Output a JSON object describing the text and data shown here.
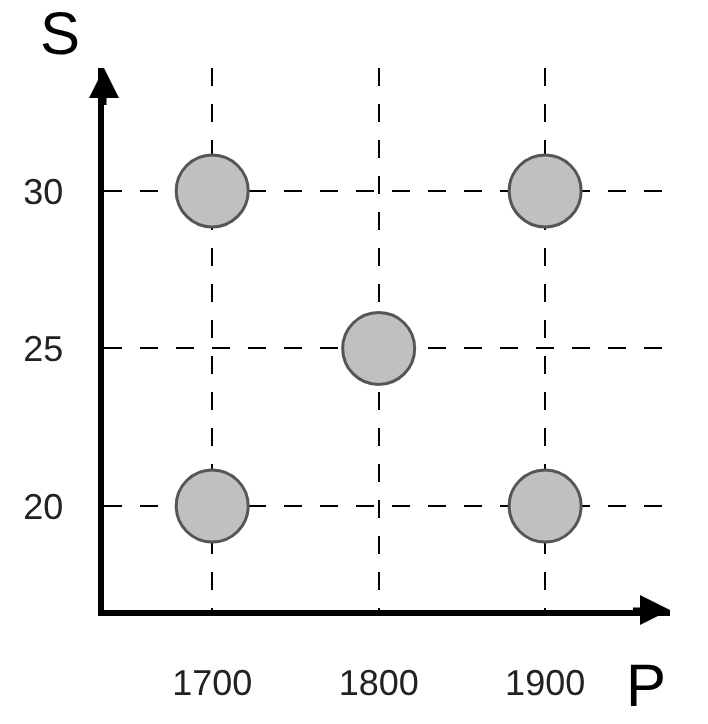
{
  "chart_data": {
    "type": "scatter",
    "xlabel": "P",
    "ylabel": "S",
    "x": [
      1700,
      1900,
      1800,
      1700,
      1900
    ],
    "series": [
      {
        "color": "#c0c0c0",
        "values": [
          30,
          30,
          25,
          20,
          20
        ]
      }
    ],
    "xlim": [
      1635,
      1975
    ],
    "ylim": [
      16.7,
      33.9
    ],
    "xticks": [
      1700,
      1800,
      1900
    ],
    "yticks": [
      20,
      25,
      30
    ],
    "grid": true,
    "marker": "circle"
  }
}
